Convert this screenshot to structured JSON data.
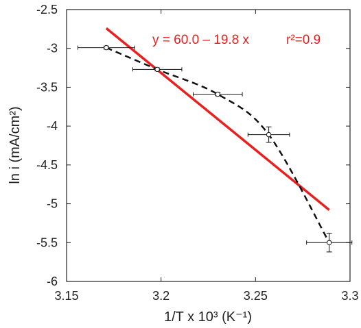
{
  "chart_data": {
    "type": "scatter",
    "xlabel": "1/T x 10³ (K⁻¹)",
    "ylabel": "ln i (mA/cm²)",
    "xlim": [
      3.15,
      3.3
    ],
    "ylim": [
      -6,
      -2.5
    ],
    "xticks": [
      "3.15",
      "3.2",
      "3.25",
      "3.3"
    ],
    "yticks": [
      "-2.5",
      "-3",
      "-3.5",
      "-4",
      "-4.5",
      "-5",
      "-5.5",
      "-6"
    ],
    "grid": false,
    "series": [
      {
        "style": "points with error bars, dashed black connecting line",
        "color": "#000000",
        "points": [
          {
            "x": 3.171,
            "y": -2.99,
            "xerr": 0.015,
            "yerr": 0.02
          },
          {
            "x": 3.198,
            "y": -3.27,
            "xerr": 0.013,
            "yerr": 0.02
          },
          {
            "x": 3.23,
            "y": -3.59,
            "xerr": 0.013,
            "yerr": 0.02
          },
          {
            "x": 3.257,
            "y": -4.11,
            "xerr": 0.011,
            "yerr": 0.1
          },
          {
            "x": 3.289,
            "y": -5.5,
            "xerr": 0.012,
            "yerr": 0.12
          }
        ]
      },
      {
        "style": "linear fit, solid red line",
        "color": "#e8201f",
        "points": [
          {
            "x": 3.171,
            "y": -2.74
          },
          {
            "x": 3.289,
            "y": -5.08
          }
        ]
      }
    ],
    "annotations": [
      {
        "text": "y = 60.0 – 19.8 x",
        "color": "#e8201f"
      },
      {
        "text": "r²=0.9",
        "color": "#e8201f"
      }
    ]
  }
}
